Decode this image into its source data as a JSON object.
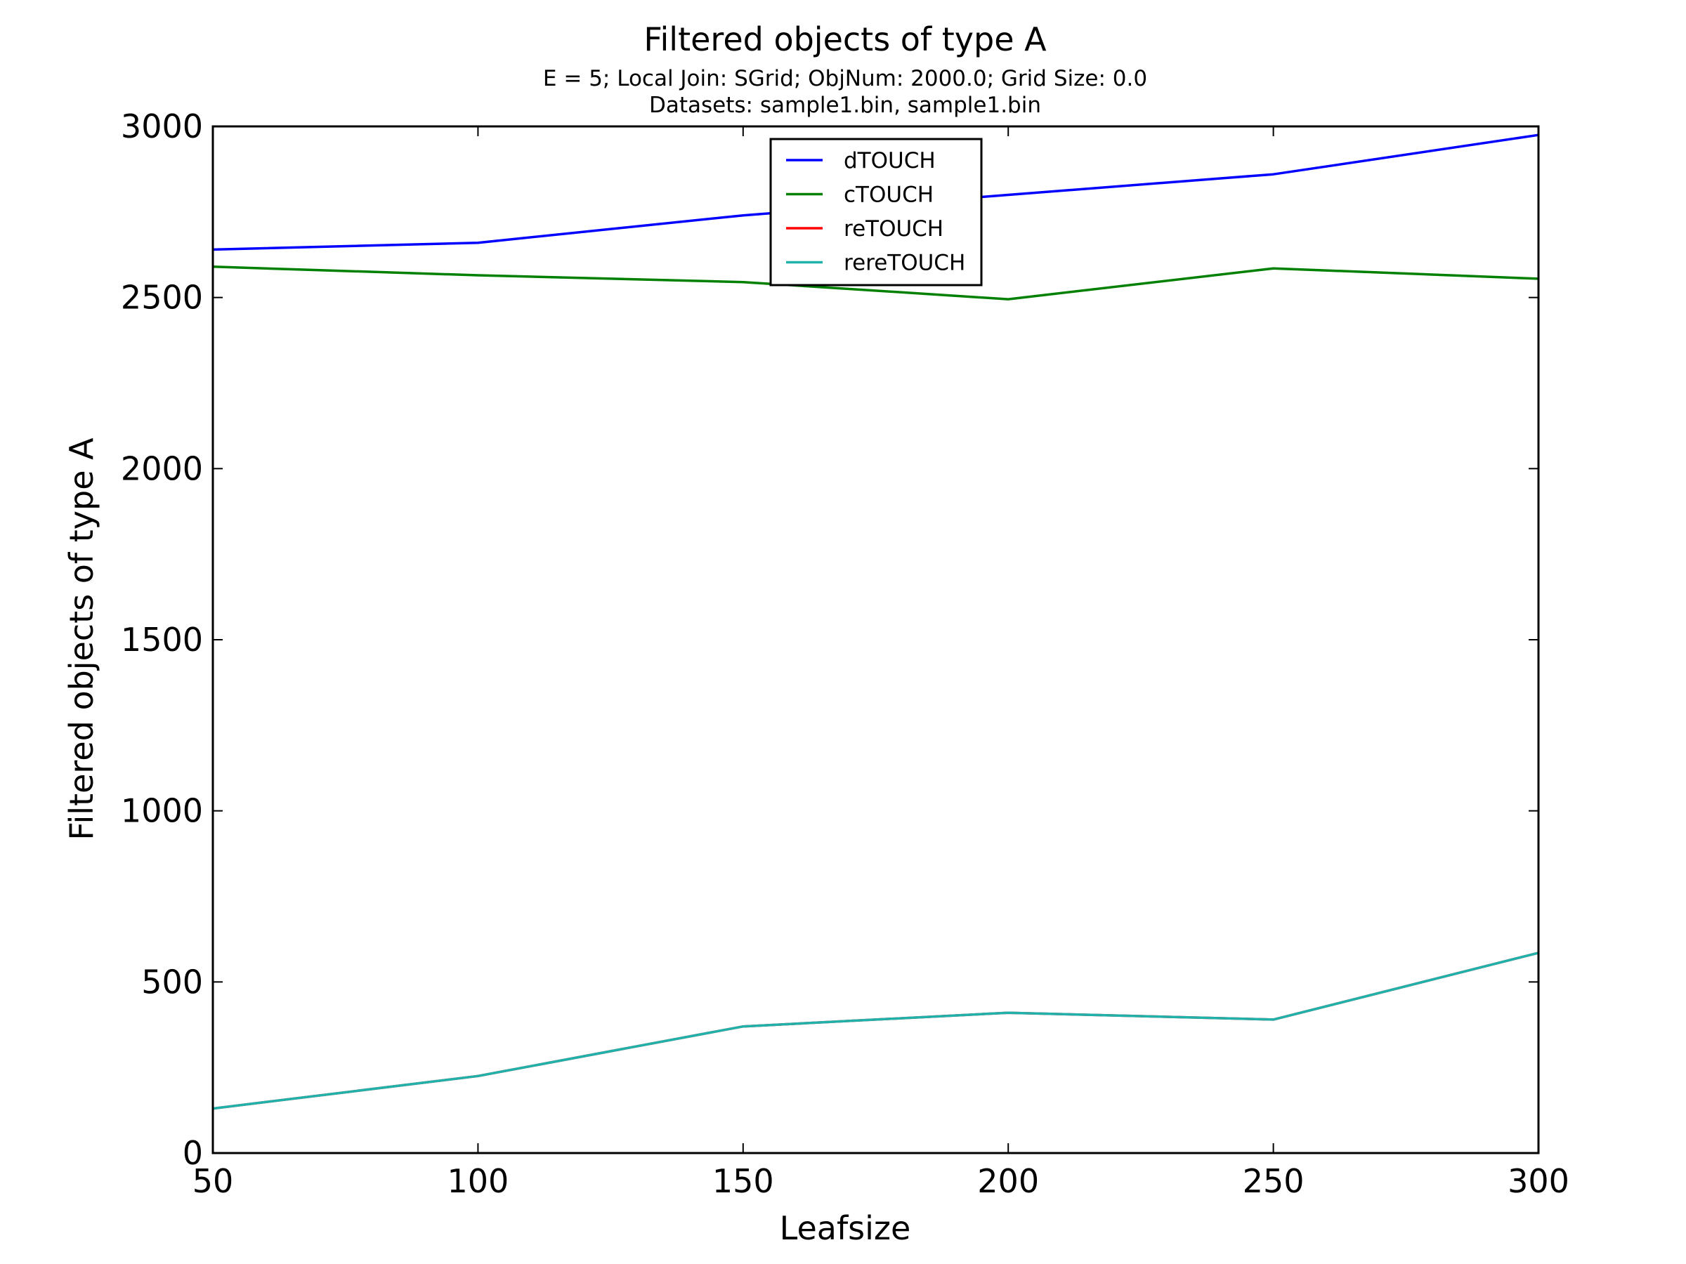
{
  "chart_data": {
    "type": "line",
    "title": "Filtered objects of type A",
    "subtitle_lines": [
      "E = 5; Local Join: SGrid; ObjNum: 2000.0; Grid Size: 0.0",
      "Datasets: sample1.bin, sample1.bin"
    ],
    "xlabel": "Leafsize",
    "ylabel": "Filtered objects of type A",
    "x": [
      50,
      100,
      150,
      200,
      250,
      300
    ],
    "xlim": [
      50,
      300
    ],
    "ylim": [
      0,
      3000
    ],
    "xticks": [
      50,
      100,
      150,
      200,
      250,
      300
    ],
    "yticks": [
      0,
      500,
      1000,
      1500,
      2000,
      2500,
      3000
    ],
    "grid": false,
    "legend_position": "upper-center",
    "series": [
      {
        "name": "dTOUCH",
        "color": "#0000ff",
        "values": [
          2640,
          2660,
          2740,
          2800,
          2860,
          2975
        ]
      },
      {
        "name": "cTOUCH",
        "color": "#008000",
        "values": [
          2590,
          2565,
          2545,
          2495,
          2585,
          2555
        ]
      },
      {
        "name": "reTOUCH",
        "color": "#ff0000",
        "values": [
          130,
          225,
          370,
          410,
          390,
          585
        ]
      },
      {
        "name": "rereTOUCH",
        "color": "#20b2aa",
        "values": [
          130,
          225,
          370,
          410,
          390,
          585
        ]
      }
    ]
  }
}
